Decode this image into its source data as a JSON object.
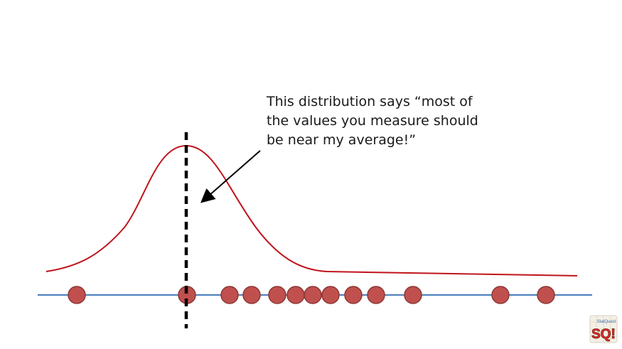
{
  "annotation": {
    "lines": [
      "This distribution says “most of",
      "the values you measure should",
      "be near my average!”"
    ]
  },
  "logo": {
    "text": "SQ!",
    "small_text": "StatQuest"
  },
  "colors": {
    "curve": "#c0141c",
    "axis": "#4a7ebb",
    "dot_fill": "#c0504d",
    "dot_stroke": "#8c3836",
    "mean_line": "#000000",
    "arrow": "#000000"
  },
  "measurements": {
    "count": 14,
    "mean_marked": true
  }
}
